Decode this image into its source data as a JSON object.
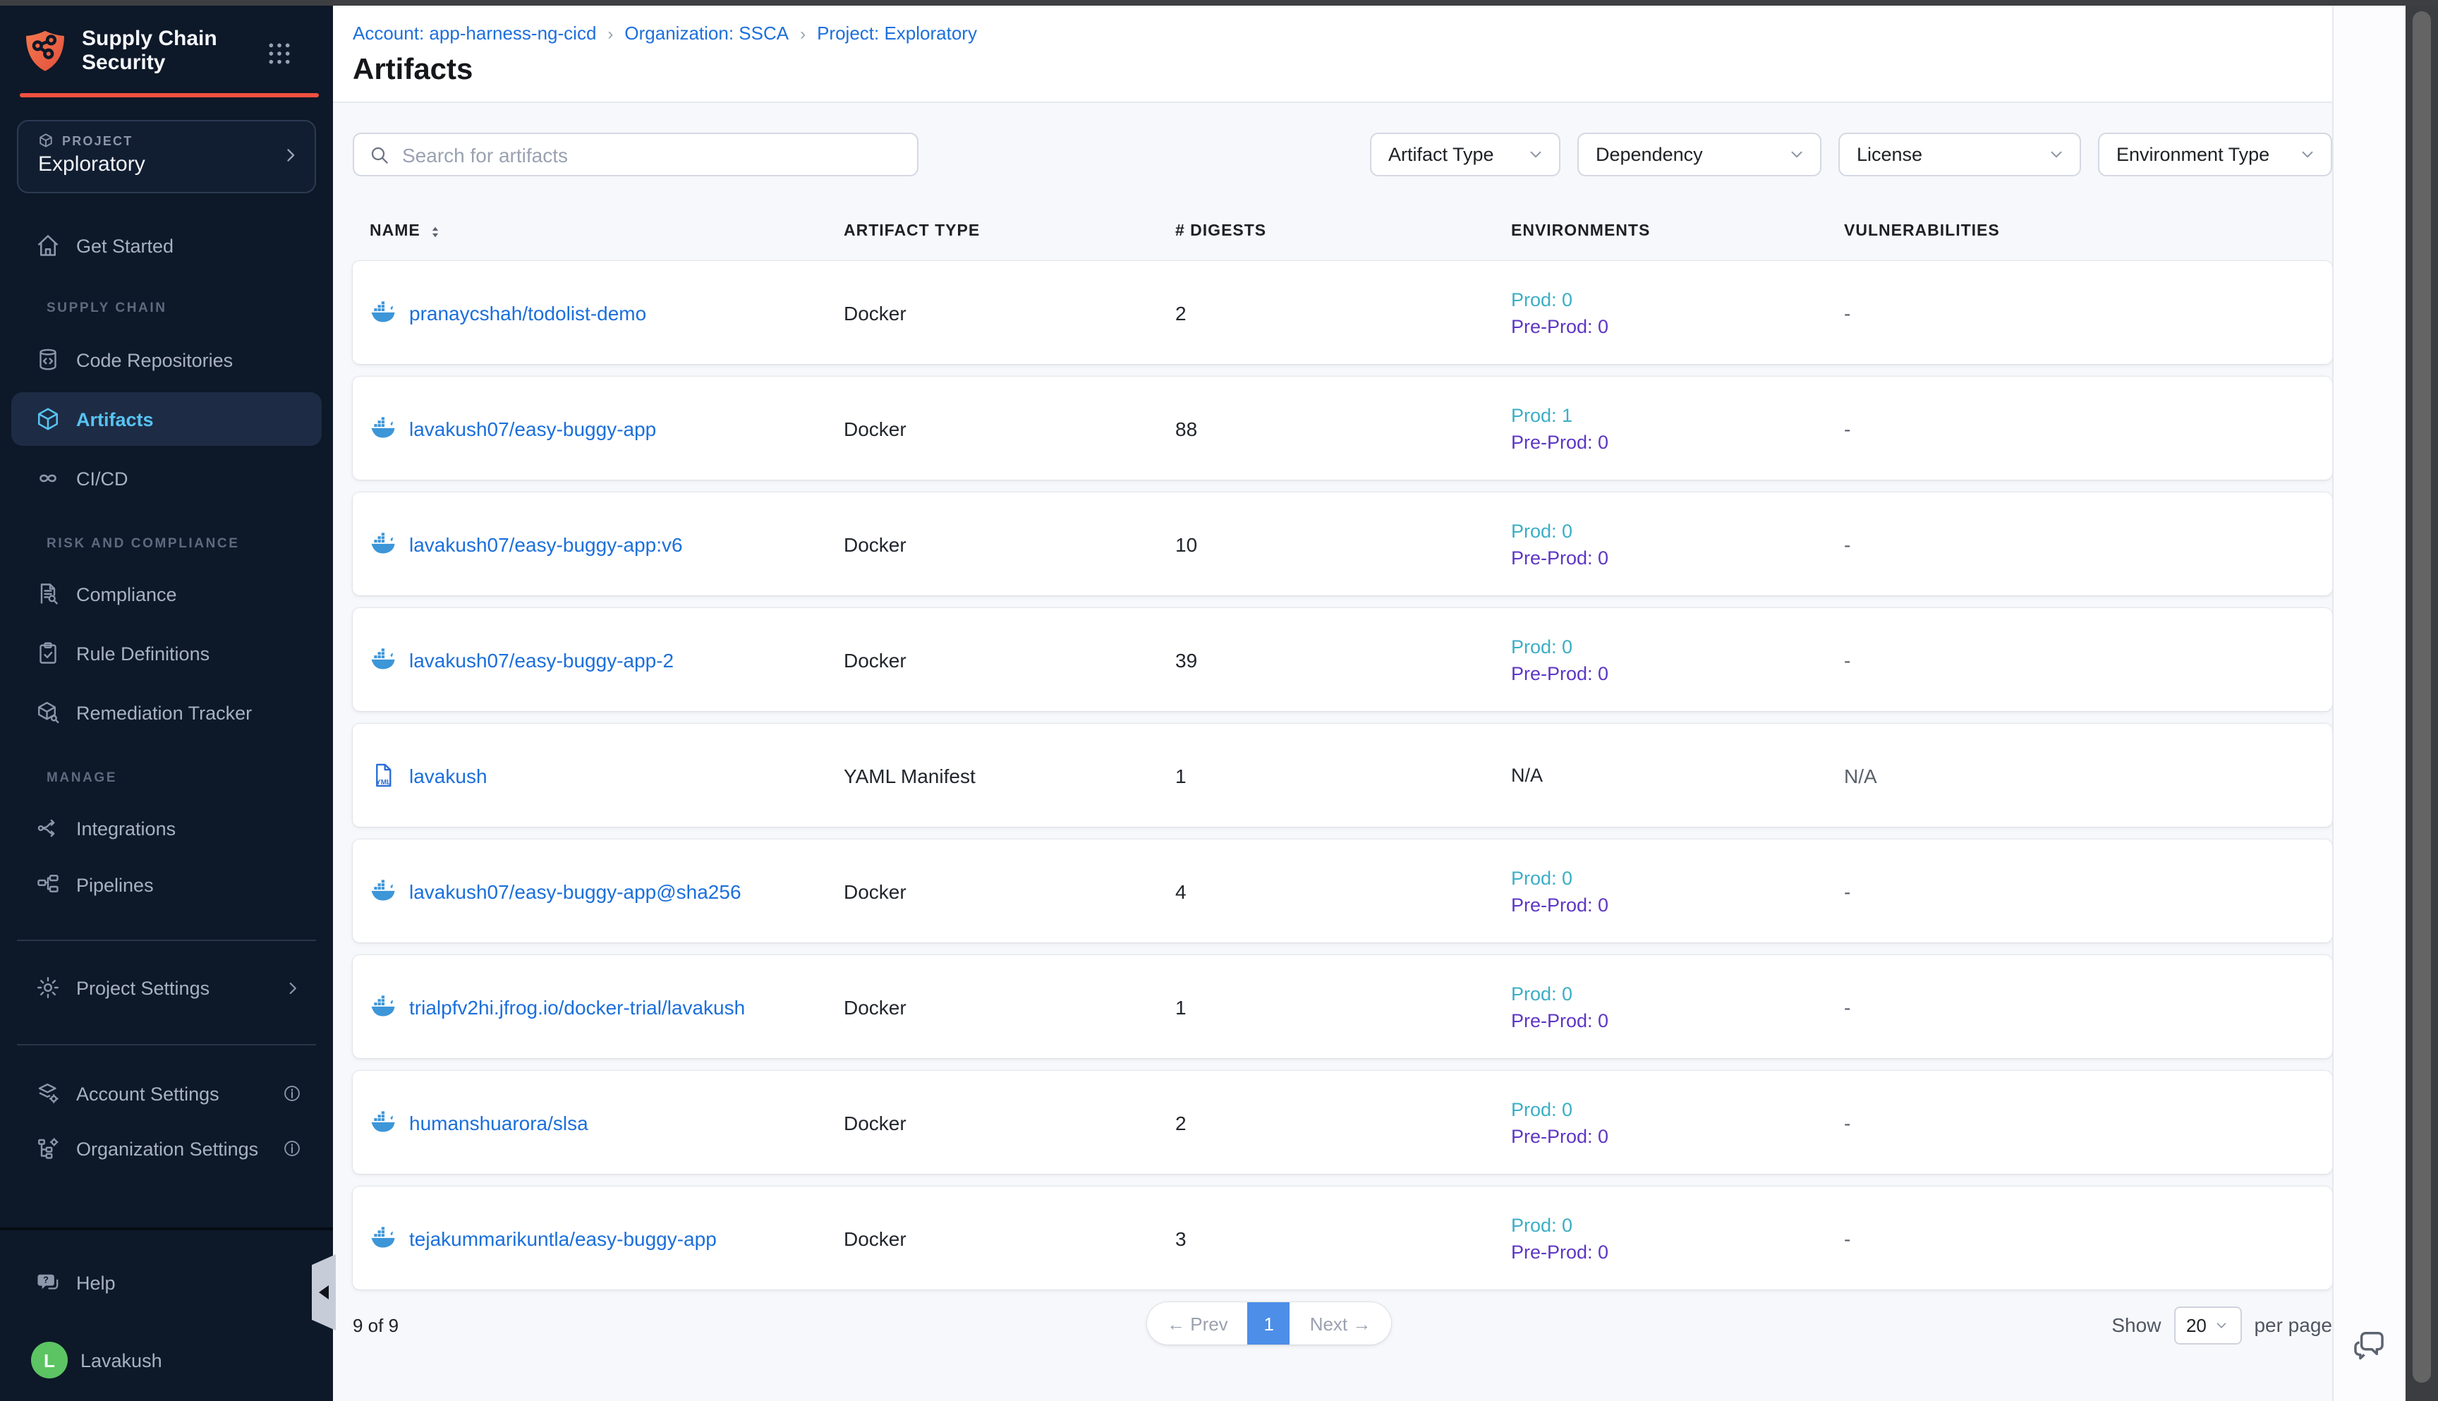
{
  "sidebar": {
    "brand": {
      "line1": "Supply Chain",
      "line2": "Security"
    },
    "project": {
      "label": "PROJECT",
      "name": "Exploratory"
    },
    "nav": [
      {
        "label": "Get Started"
      },
      {
        "label": "SUPPLY CHAIN"
      },
      {
        "label": "Code Repositories"
      },
      {
        "label": "Artifacts"
      },
      {
        "label": "CI/CD"
      },
      {
        "label": "RISK AND COMPLIANCE"
      },
      {
        "label": "Compliance"
      },
      {
        "label": "Rule Definitions"
      },
      {
        "label": "Remediation Tracker"
      },
      {
        "label": "MANAGE"
      },
      {
        "label": "Integrations"
      },
      {
        "label": "Pipelines"
      },
      {
        "label": "Project Settings"
      },
      {
        "label": "Account Settings"
      },
      {
        "label": "Organization Settings"
      }
    ],
    "footer": {
      "help": "Help",
      "user": "Lavakush",
      "avatar_initial": "L"
    }
  },
  "breadcrumb": {
    "account": "Account: app-harness-ng-cicd",
    "organization": "Organization: SSCA",
    "project": "Project: Exploratory",
    "separator": "›"
  },
  "page": {
    "title": "Artifacts"
  },
  "search": {
    "placeholder": "Search for artifacts",
    "value": ""
  },
  "filters": [
    {
      "label": "Artifact Type"
    },
    {
      "label": "Dependency"
    },
    {
      "label": "License"
    },
    {
      "label": "Environment Type"
    }
  ],
  "table": {
    "columns": [
      "NAME",
      "ARTIFACT TYPE",
      "# DIGESTS",
      "ENVIRONMENTS",
      "VULNERABILITIES"
    ],
    "rows": [
      {
        "name": "pranaycshah/todolist-demo",
        "icon": "docker",
        "type": "Docker",
        "digests": "2",
        "prod": "Prod: 0",
        "preprod": "Pre-Prod: 0",
        "vulnerabilities": "-"
      },
      {
        "name": "lavakush07/easy-buggy-app",
        "icon": "docker",
        "type": "Docker",
        "digests": "88",
        "prod": "Prod: 1",
        "preprod": "Pre-Prod: 0",
        "vulnerabilities": "-"
      },
      {
        "name": "lavakush07/easy-buggy-app:v6",
        "icon": "docker",
        "type": "Docker",
        "digests": "10",
        "prod": "Prod: 0",
        "preprod": "Pre-Prod: 0",
        "vulnerabilities": "-"
      },
      {
        "name": "lavakush07/easy-buggy-app-2",
        "icon": "docker",
        "type": "Docker",
        "digests": "39",
        "prod": "Prod: 0",
        "preprod": "Pre-Prod: 0",
        "vulnerabilities": "-"
      },
      {
        "name": "lavakush",
        "icon": "yaml",
        "type": "YAML Manifest",
        "digests": "1",
        "environments": "N/A",
        "vulnerabilities": "N/A"
      },
      {
        "name": "lavakush07/easy-buggy-app@sha256",
        "icon": "docker",
        "type": "Docker",
        "digests": "4",
        "prod": "Prod: 0",
        "preprod": "Pre-Prod: 0",
        "vulnerabilities": "-"
      },
      {
        "name": "trialpfv2hi.jfrog.io/docker-trial/lavakush",
        "icon": "docker",
        "type": "Docker",
        "digests": "1",
        "prod": "Prod: 0",
        "preprod": "Pre-Prod: 0",
        "vulnerabilities": "-"
      },
      {
        "name": "humanshuarora/slsa",
        "icon": "docker",
        "type": "Docker",
        "digests": "2",
        "prod": "Prod: 0",
        "preprod": "Pre-Prod: 0",
        "vulnerabilities": "-"
      },
      {
        "name": "tejakummarikuntla/easy-buggy-app",
        "icon": "docker",
        "type": "Docker",
        "digests": "3",
        "prod": "Prod: 0",
        "preprod": "Pre-Prod: 0",
        "vulnerabilities": "-"
      }
    ]
  },
  "pagination": {
    "summary": "9 of 9",
    "prev": "← Prev",
    "page": "1",
    "next": "Next →",
    "show_label": "Show",
    "per_page": "20",
    "per_page_suffix": "per page"
  },
  "colors": {
    "accent_red": "#F2503F",
    "sidebar_bg": "#0D1828",
    "active_item_blue": "#58C3F2",
    "link_blue": "#1B6FDB",
    "prod_teal": "#3BAEC6",
    "preprod_purple": "#5D36C4",
    "page_active_blue": "#4D8EE8",
    "avatar_green": "#5CC463",
    "docker_blue": "#3D96D8"
  }
}
